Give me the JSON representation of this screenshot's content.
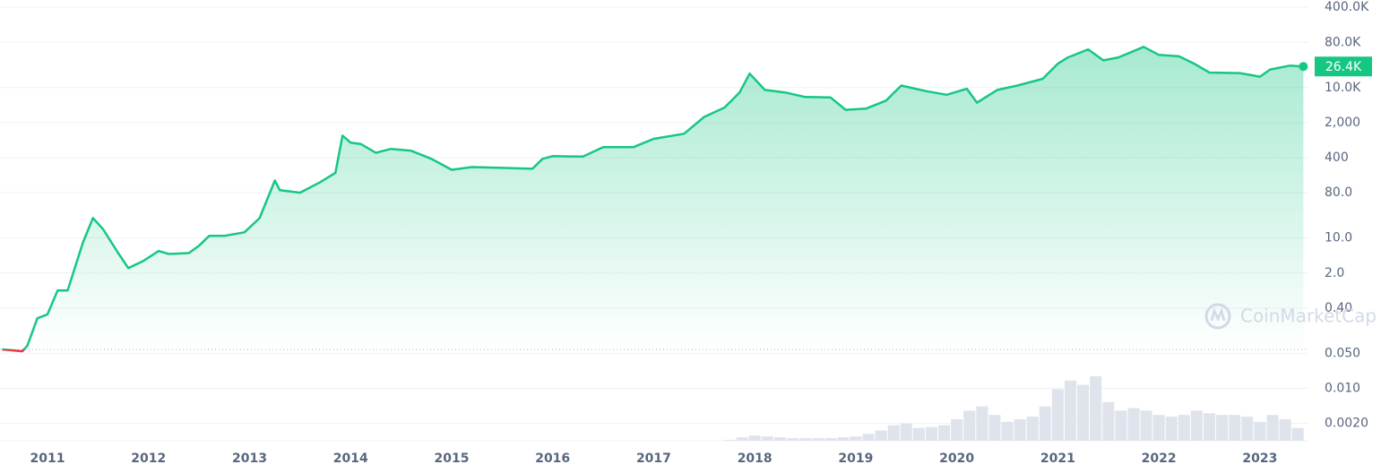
{
  "chart_data": {
    "type": "line",
    "log_scale": true,
    "grid": true,
    "color": "#16c784",
    "down_color": "#ea3943",
    "x": [
      2010.55,
      2010.75,
      2010.8,
      2010.9,
      2011.0,
      2011.1,
      2011.2,
      2011.35,
      2011.45,
      2011.55,
      2011.7,
      2011.8,
      2011.95,
      2012.1,
      2012.2,
      2012.4,
      2012.5,
      2012.6,
      2012.75,
      2012.95,
      2013.1,
      2013.25,
      2013.3,
      2013.5,
      2013.7,
      2013.85,
      2013.92,
      2014.0,
      2014.1,
      2014.25,
      2014.4,
      2014.6,
      2014.8,
      2015.0,
      2015.2,
      2015.5,
      2015.8,
      2015.9,
      2016.0,
      2016.3,
      2016.5,
      2016.8,
      2017.0,
      2017.3,
      2017.5,
      2017.7,
      2017.85,
      2017.95,
      2018.1,
      2018.3,
      2018.5,
      2018.75,
      2018.9,
      2019.1,
      2019.3,
      2019.45,
      2019.7,
      2019.9,
      2020.1,
      2020.2,
      2020.4,
      2020.6,
      2020.85,
      2021.0,
      2021.1,
      2021.3,
      2021.45,
      2021.6,
      2021.85,
      2022.0,
      2022.2,
      2022.35,
      2022.5,
      2022.8,
      2023.0,
      2023.1,
      2023.3,
      2023.43
    ],
    "values": [
      0.06,
      0.055,
      0.07,
      0.25,
      0.3,
      0.9,
      0.9,
      8,
      25,
      15,
      5,
      2.5,
      3.5,
      5.5,
      4.8,
      5,
      7,
      11,
      11,
      13,
      25,
      140,
      90,
      80,
      130,
      200,
      1100,
      800,
      750,
      500,
      600,
      550,
      380,
      230,
      260,
      250,
      240,
      380,
      430,
      420,
      650,
      650,
      950,
      1200,
      2600,
      4000,
      8000,
      19000,
      9000,
      8000,
      6500,
      6400,
      3600,
      3800,
      5500,
      11000,
      8500,
      7200,
      9500,
      5000,
      9000,
      11000,
      15000,
      30000,
      40000,
      58000,
      35000,
      40000,
      65000,
      45000,
      42000,
      30000,
      20000,
      19500,
      16500,
      23000,
      27500,
      26400
    ],
    "last_price": {
      "value": 26400,
      "label": "26.4K"
    },
    "volume": {
      "color": "#dfe3ec",
      "x": [
        2017.75,
        2017.875,
        2018,
        2018.125,
        2018.25,
        2018.375,
        2018.5,
        2018.625,
        2018.75,
        2018.875,
        2019,
        2019.125,
        2019.25,
        2019.375,
        2019.5,
        2019.625,
        2019.75,
        2019.875,
        2020,
        2020.125,
        2020.25,
        2020.375,
        2020.5,
        2020.625,
        2020.75,
        2020.875,
        2021,
        2021.125,
        2021.25,
        2021.375,
        2021.5,
        2021.625,
        2021.75,
        2021.875,
        2022,
        2022.125,
        2022.25,
        2022.375,
        2022.5,
        2022.625,
        2022.75,
        2022.875,
        2023,
        2023.125,
        2023.25,
        2023.375
      ],
      "values": [
        1,
        4,
        6,
        5,
        4,
        3,
        3,
        3,
        3,
        4,
        5,
        8,
        12,
        18,
        20,
        15,
        16,
        18,
        25,
        35,
        40,
        30,
        22,
        25,
        28,
        40,
        60,
        70,
        65,
        75,
        45,
        35,
        38,
        35,
        30,
        28,
        30,
        35,
        32,
        30,
        30,
        28,
        22,
        30,
        25,
        15
      ]
    },
    "xlim": [
      2010.53,
      2023.48
    ],
    "xticks": [
      2011,
      2012,
      2013,
      2014,
      2015,
      2016,
      2017,
      2018,
      2019,
      2020,
      2021,
      2022,
      2023
    ],
    "ylim": [
      0.0009,
      560000
    ],
    "yticks": [
      {
        "value": 400000,
        "label": "400.0K"
      },
      {
        "value": 80000,
        "label": "80.0K"
      },
      {
        "value": 10000,
        "label": "10.0K"
      },
      {
        "value": 2000,
        "label": "2,000"
      },
      400,
      {
        "value": 80,
        "label": "80.0"
      },
      {
        "value": 10,
        "label": "10.0"
      },
      {
        "value": 2,
        "label": "2.0"
      },
      {
        "value": 0.4,
        "label": "0.40"
      },
      {
        "value": 0.05,
        "label": "0.050"
      },
      {
        "value": 0.01,
        "label": "0.010"
      },
      {
        "value": 0.002,
        "label": "0.0020"
      }
    ],
    "watermark": "CoinMarketCap"
  }
}
